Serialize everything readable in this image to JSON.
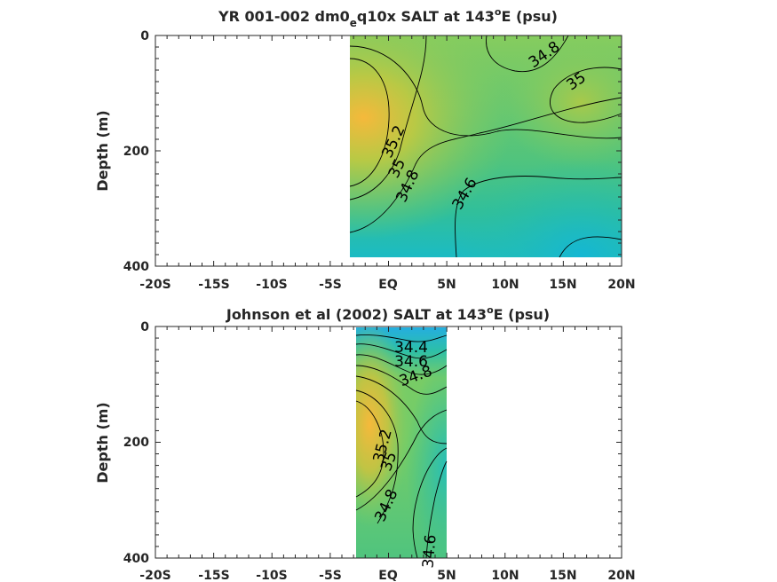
{
  "chart_data": [
    {
      "type": "contour",
      "title_main": "YR 001-002 dm0",
      "title_sub": "e",
      "title_rest": "q10x SALT at 143",
      "title_sup": "o",
      "title_end": "E (psu)",
      "ylabel": "Depth (m)",
      "xlabel": "",
      "xlim": [
        -20,
        20
      ],
      "ylim": [
        0,
        400
      ],
      "y_reversed": true,
      "x_ticks": [
        -20,
        -15,
        -10,
        -5,
        0,
        5,
        10,
        15,
        20
      ],
      "x_tick_labels": [
        "-20S",
        "-15S",
        "-10S",
        "-5S",
        "EQ",
        "5N",
        "10N",
        "15N",
        "20N"
      ],
      "y_ticks": [
        0,
        200,
        400
      ],
      "y_tick_labels": [
        "0",
        "200",
        "400"
      ],
      "data_extent": {
        "x": [
          -3,
          20
        ],
        "y": [
          0,
          380
        ]
      },
      "contour_labels": [
        {
          "text": "34.8",
          "x": 14,
          "y": 35
        },
        {
          "text": "35",
          "x": 16,
          "y": 75
        },
        {
          "text": "35.2",
          "x": 0.5,
          "y": 180
        },
        {
          "text": "35",
          "x": 0.5,
          "y": 225
        },
        {
          "text": "34.8",
          "x": 2.5,
          "y": 250
        },
        {
          "text": "34.6",
          "x": 6.5,
          "y": 270
        }
      ],
      "colors": {
        "max": "#f5b93b",
        "high": "#b8c945",
        "mid": "#7ccc63",
        "low": "#2dbf9e",
        "min": "#14b7d4"
      }
    },
    {
      "type": "contour",
      "title_main": "Johnson et al (2002) SALT at 143",
      "title_sup": "o",
      "title_end": "E (psu)",
      "ylabel": "Depth (m)",
      "xlabel": "",
      "xlim": [
        -20,
        20
      ],
      "ylim": [
        0,
        400
      ],
      "y_reversed": true,
      "x_ticks": [
        -20,
        -15,
        -10,
        -5,
        0,
        5,
        10,
        15,
        20
      ],
      "x_tick_labels": [
        "-20S",
        "-15S",
        "-10S",
        "-5S",
        "EQ",
        "5N",
        "10N",
        "15N",
        "20N"
      ],
      "y_ticks": [
        0,
        200,
        400
      ],
      "y_tick_labels": [
        "0",
        "200",
        "400"
      ],
      "data_extent": {
        "x": [
          -2.5,
          5
        ],
        "y": [
          5,
          400
        ]
      },
      "contour_labels": [
        {
          "text": "34.4",
          "x": 2,
          "y": 35
        },
        {
          "text": "34.6",
          "x": 2,
          "y": 60
        },
        {
          "text": "34.8",
          "x": 2.5,
          "y": 85
        },
        {
          "text": "35.2",
          "x": -0.3,
          "y": 215
        },
        {
          "text": "35",
          "x": 0,
          "y": 250
        },
        {
          "text": "34.8",
          "x": 0.3,
          "y": 325
        },
        {
          "text": "34.6",
          "x": 3.5,
          "y": 385
        }
      ],
      "colors": {
        "max": "#f5b93b",
        "high": "#b8c945",
        "mid": "#7ccc63",
        "low": "#2dbf9e",
        "min": "#14b7d4"
      }
    }
  ]
}
